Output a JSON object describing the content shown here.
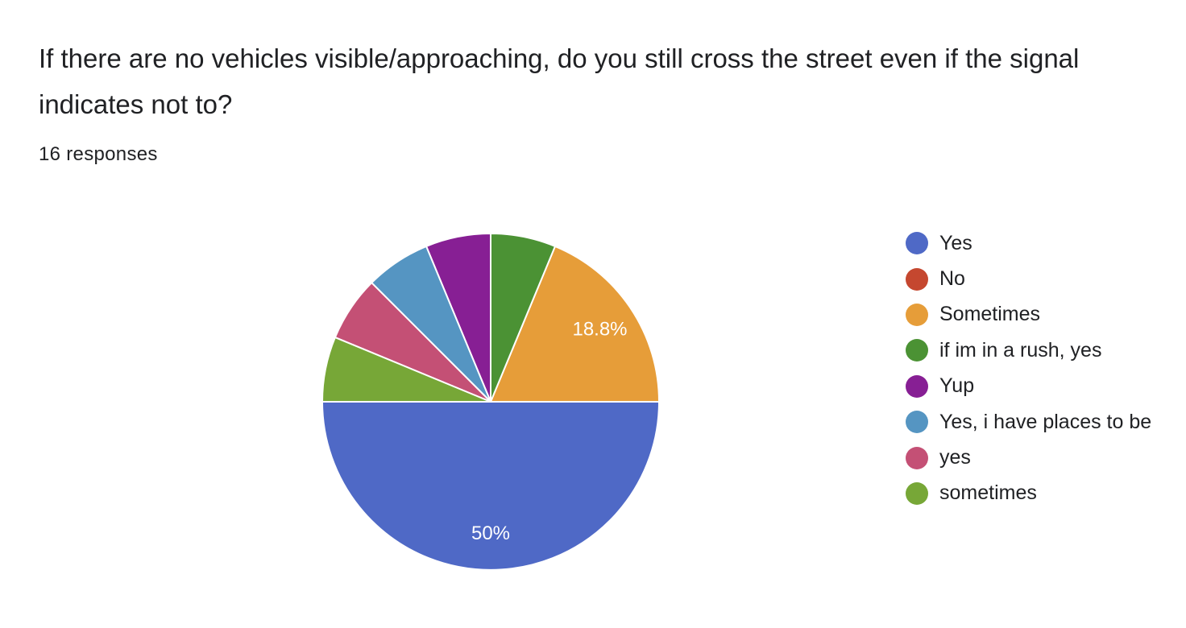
{
  "question": {
    "title": "If there are no vehicles visible/approaching, do you still cross the street even if the signal indicates not to?",
    "response_count": "16 responses"
  },
  "chart_data": {
    "type": "pie",
    "title": "If there are no vehicles visible/approaching, do you still cross the street even if the signal indicates not to?",
    "total_responses": 16,
    "legend_position": "right",
    "slices": [
      {
        "label": "Yes",
        "count": 8,
        "percent": 50,
        "color": "#4f69c6",
        "data_label": "50%"
      },
      {
        "label": "No",
        "count": 0,
        "percent": 0,
        "color": "#c5472f",
        "data_label": ""
      },
      {
        "label": "Sometimes",
        "count": 3,
        "percent": 18.8,
        "color": "#e69d39",
        "data_label": "18.8%"
      },
      {
        "label": "if im in a rush, yes",
        "count": 1,
        "percent": 6.25,
        "color": "#4b9234",
        "data_label": ""
      },
      {
        "label": "Yup",
        "count": 1,
        "percent": 6.25,
        "color": "#871f94",
        "data_label": ""
      },
      {
        "label": "Yes, i have places to be",
        "count": 1,
        "percent": 6.25,
        "color": "#5595c2",
        "data_label": ""
      },
      {
        "label": "yes",
        "count": 1,
        "percent": 6.25,
        "color": "#c45075",
        "data_label": ""
      },
      {
        "label": "sometimes",
        "count": 1,
        "percent": 6.25,
        "color": "#77a737",
        "data_label": ""
      }
    ]
  }
}
